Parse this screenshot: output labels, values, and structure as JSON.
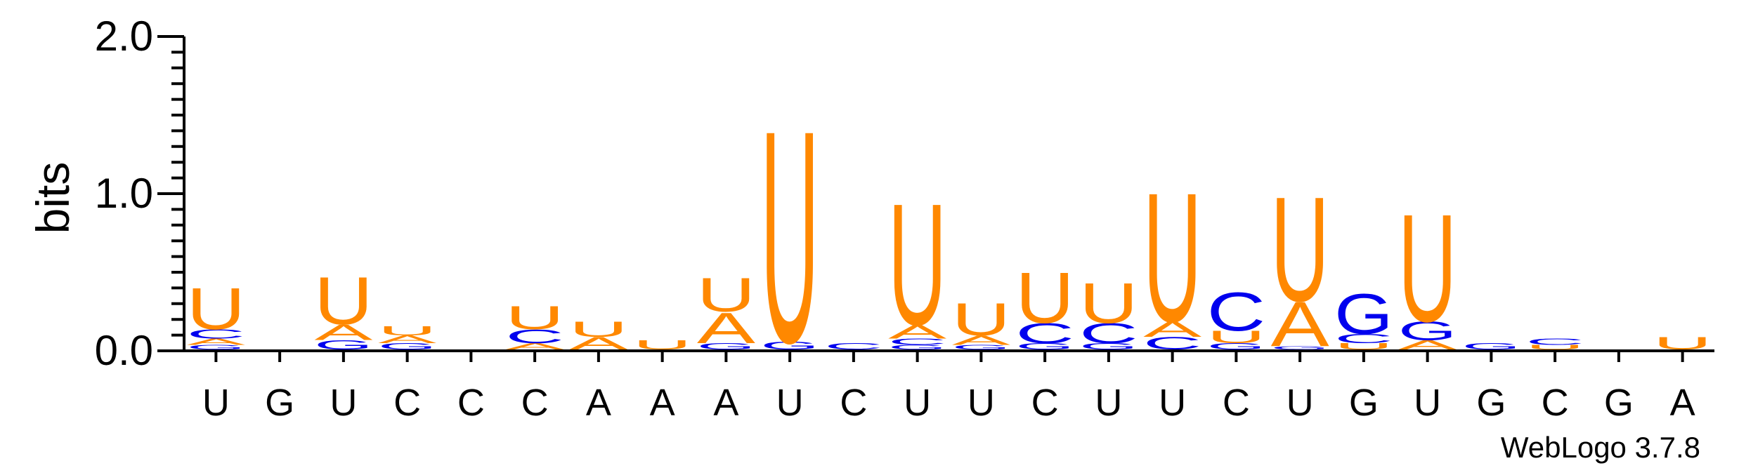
{
  "chart_data": {
    "type": "sequence-logo",
    "ylabel": "bits",
    "ylim": [
      0,
      2.0
    ],
    "yticks": [
      "0.0",
      "1.0",
      "2.0"
    ],
    "colors": {
      "U": "#ff8800",
      "A": "#ff8800",
      "C": "#0000ee",
      "G": "#0000ee"
    },
    "positions": [
      {
        "label": "U",
        "stack": [
          [
            "G",
            0.03
          ],
          [
            "A",
            0.04
          ],
          [
            "C",
            0.06
          ],
          [
            "U",
            0.27
          ]
        ]
      },
      {
        "label": "G",
        "stack": []
      },
      {
        "label": "U",
        "stack": [
          [
            "G",
            0.06
          ],
          [
            "A",
            0.1
          ],
          [
            "U",
            0.31
          ]
        ]
      },
      {
        "label": "C",
        "stack": [
          [
            "G",
            0.04
          ],
          [
            "A",
            0.05
          ],
          [
            "U",
            0.06
          ]
        ]
      },
      {
        "label": "C",
        "stack": []
      },
      {
        "label": "C",
        "stack": [
          [
            "A",
            0.04
          ],
          [
            "C",
            0.09
          ],
          [
            "U",
            0.15
          ]
        ]
      },
      {
        "label": "A",
        "stack": [
          [
            "A",
            0.08
          ],
          [
            "U",
            0.1
          ]
        ]
      },
      {
        "label": "A",
        "stack": [
          [
            "U",
            0.06
          ]
        ]
      },
      {
        "label": "A",
        "stack": [
          [
            "G",
            0.04
          ],
          [
            "A",
            0.2
          ],
          [
            "U",
            0.22
          ]
        ]
      },
      {
        "label": "U",
        "stack": [
          [
            "G",
            0.05
          ],
          [
            "U",
            1.38
          ]
        ]
      },
      {
        "label": "C",
        "stack": [
          [
            "C",
            0.04
          ]
        ]
      },
      {
        "label": "U",
        "stack": [
          [
            "G",
            0.03
          ],
          [
            "C",
            0.04
          ],
          [
            "A",
            0.09
          ],
          [
            "U",
            0.79
          ]
        ]
      },
      {
        "label": "U",
        "stack": [
          [
            "G",
            0.03
          ],
          [
            "A",
            0.06
          ],
          [
            "U",
            0.21
          ]
        ]
      },
      {
        "label": "C",
        "stack": [
          [
            "G",
            0.04
          ],
          [
            "C",
            0.13
          ],
          [
            "U",
            0.33
          ]
        ]
      },
      {
        "label": "U",
        "stack": [
          [
            "G",
            0.04
          ],
          [
            "C",
            0.13
          ],
          [
            "U",
            0.26
          ]
        ]
      },
      {
        "label": "U",
        "stack": [
          [
            "C",
            0.08
          ],
          [
            "A",
            0.1
          ],
          [
            "U",
            0.84
          ]
        ]
      },
      {
        "label": "C",
        "stack": [
          [
            "G",
            0.04
          ],
          [
            "U",
            0.08
          ],
          [
            "C",
            0.25
          ]
        ]
      },
      {
        "label": "U",
        "stack": [
          [
            "G",
            0.02
          ],
          [
            "A",
            0.29
          ],
          [
            "U",
            0.68
          ]
        ]
      },
      {
        "label": "G",
        "stack": [
          [
            "U",
            0.04
          ],
          [
            "C",
            0.06
          ],
          [
            "G",
            0.26
          ]
        ]
      },
      {
        "label": "U",
        "stack": [
          [
            "A",
            0.06
          ],
          [
            "G",
            0.12
          ],
          [
            "U",
            0.7
          ]
        ]
      },
      {
        "label": "G",
        "stack": [
          [
            "G",
            0.04
          ]
        ]
      },
      {
        "label": "C",
        "stack": [
          [
            "U",
            0.03
          ],
          [
            "C",
            0.04
          ]
        ]
      },
      {
        "label": "G",
        "stack": []
      },
      {
        "label": "A",
        "stack": [
          [
            "U",
            0.08
          ]
        ]
      }
    ]
  },
  "credit": "WebLogo 3.7.8"
}
